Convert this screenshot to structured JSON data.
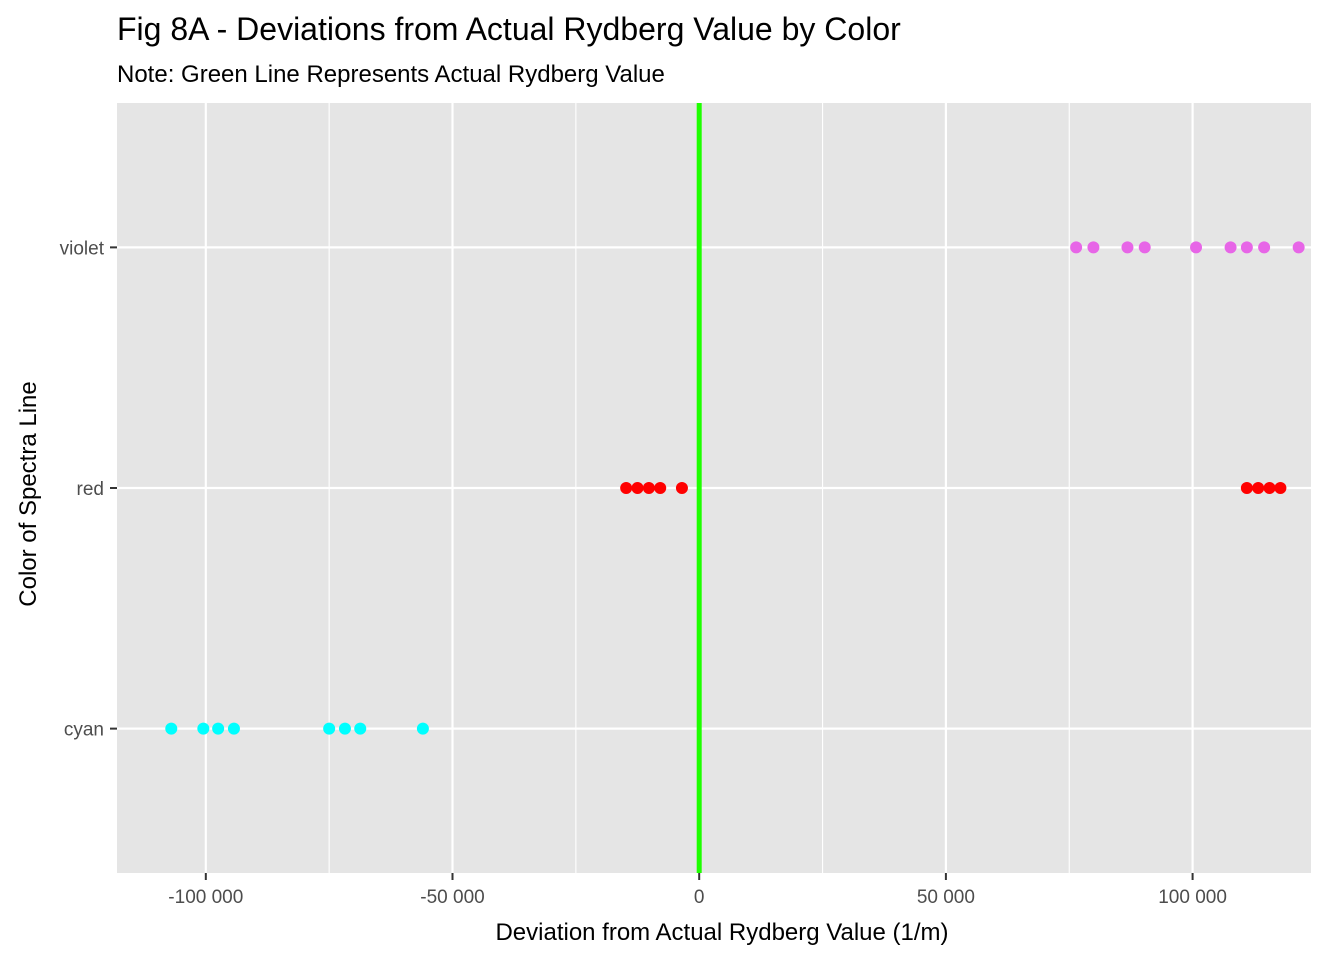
{
  "chart_data": {
    "type": "scatter",
    "title": "Fig 8A - Deviations from Actual Rydberg Value by Color",
    "subtitle": "Note: Green Line Represents Actual Rydberg Value",
    "xlabel": "Deviation from Actual Rydberg Value (1/m)",
    "ylabel": "Color of Spectra Line",
    "xlim": [
      -118000,
      124000
    ],
    "x_ticks": [
      {
        "value": -100000,
        "label": "-100 000"
      },
      {
        "value": -50000,
        "label": "-50 000"
      },
      {
        "value": 0,
        "label": "0"
      },
      {
        "value": 50000,
        "label": "50 000"
      },
      {
        "value": 100000,
        "label": "100 000"
      }
    ],
    "categories": [
      "cyan",
      "red",
      "violet"
    ],
    "grid": true,
    "reference_line": {
      "x": 0,
      "color": "#1eff00"
    },
    "series": [
      {
        "category": "cyan",
        "color": "#00ffff",
        "values": [
          -107000,
          -100500,
          -97500,
          -94300,
          -75000,
          -71800,
          -68700,
          -56000
        ]
      },
      {
        "category": "red",
        "color": "#ff0000",
        "values": [
          -14800,
          -12500,
          -10200,
          -7900,
          -3500,
          111000,
          113300,
          115600,
          117800
        ]
      },
      {
        "category": "violet",
        "color": "#e766e7",
        "values": [
          76400,
          79900,
          86800,
          90300,
          100700,
          107700,
          111000,
          114500,
          121500
        ]
      }
    ]
  }
}
